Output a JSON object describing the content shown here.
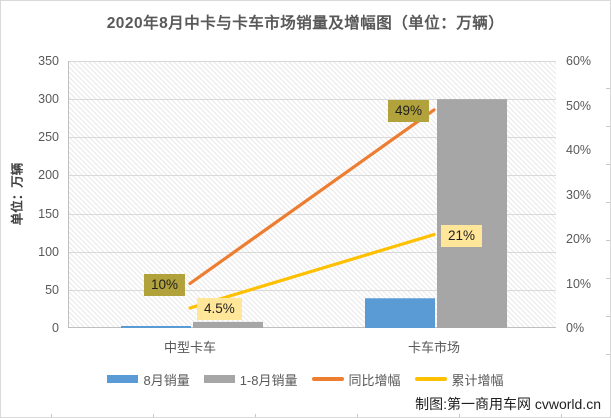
{
  "title": "2020年8月中卡与卡车市场销量及增幅图（单位：万辆）",
  "watermark": "制图:第一商用车网 cvworld.cn",
  "chart_data": {
    "type": "combo-bar-line",
    "categories": [
      "中型卡车",
      "卡车市场"
    ],
    "left_axis": {
      "title": "单位：万辆",
      "min": 0,
      "max": 350,
      "step": 50,
      "ticks": [
        "0",
        "50",
        "100",
        "150",
        "200",
        "250",
        "300",
        "350"
      ]
    },
    "right_axis": {
      "min": 0,
      "max": 60,
      "step": 10,
      "ticks": [
        "0%",
        "10%",
        "20%",
        "30%",
        "40%",
        "50%",
        "60%"
      ]
    },
    "series": [
      {
        "name": "8月销量",
        "type": "bar",
        "axis": "left",
        "color": "#5B9BD5",
        "values": [
          1.5,
          39
        ]
      },
      {
        "name": "1-8月销量",
        "type": "bar",
        "axis": "left",
        "color": "#A6A6A6",
        "values": [
          8,
          300
        ]
      },
      {
        "name": "同比增幅",
        "type": "line",
        "axis": "right",
        "color": "#ED7D31",
        "values": [
          10,
          49
        ],
        "point_labels": [
          "10%",
          "49%"
        ],
        "label_bg": "#B2A23C",
        "label_side": "left"
      },
      {
        "name": "累计增幅",
        "type": "line",
        "axis": "right",
        "color": "#FFC000",
        "values": [
          4.5,
          21
        ],
        "point_labels": [
          "4.5%",
          "21%"
        ],
        "label_bg": "#FFE699",
        "label_side": "right"
      }
    ],
    "grid": true,
    "legend_position": "bottom",
    "plot_background": "diagonal-hatch"
  },
  "colors": {
    "title_text": "#595959",
    "axis_text": "#595959",
    "gridline": "#D9D9D9",
    "axis_line": "#BFBFBF",
    "hatch_line": "#E9E9E9"
  }
}
